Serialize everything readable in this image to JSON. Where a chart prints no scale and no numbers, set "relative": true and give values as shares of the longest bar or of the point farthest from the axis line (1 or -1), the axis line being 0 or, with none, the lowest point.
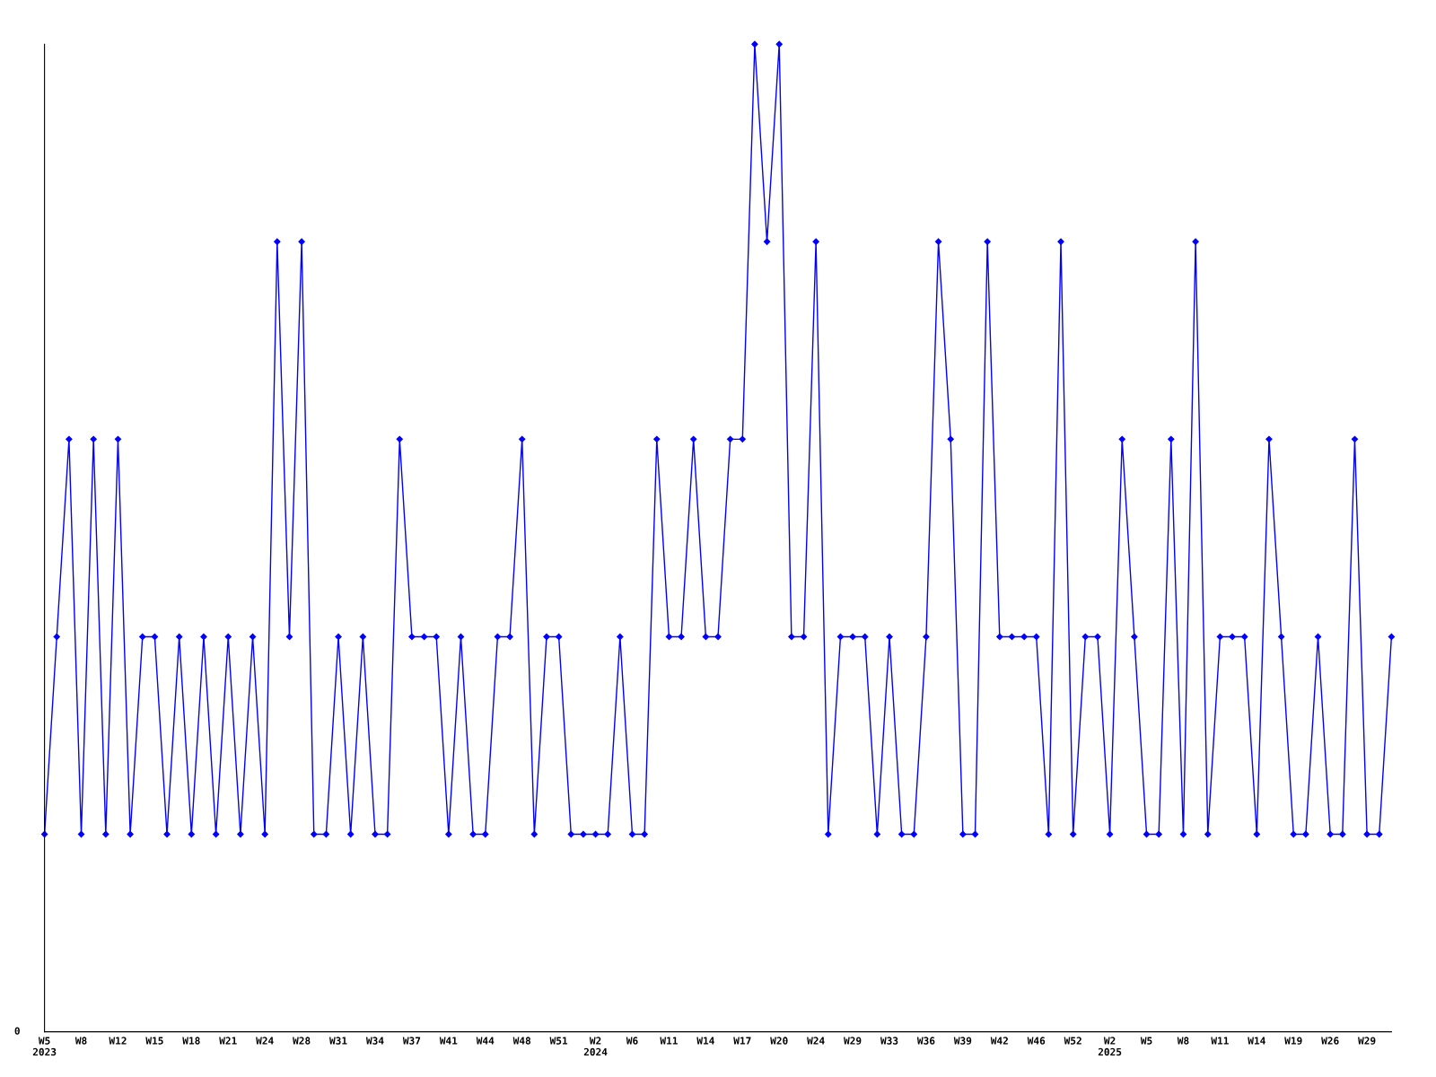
{
  "chart_data": {
    "type": "line",
    "relative": true,
    "color": "#0000ff",
    "marker": "diamond",
    "line_style": "solid",
    "grid": false,
    "legend": false,
    "annotations": [
      "0"
    ],
    "categories": [
      "W5\n2023",
      null,
      null,
      "W8",
      null,
      null,
      "W12",
      null,
      null,
      "W15",
      null,
      null,
      "W18",
      null,
      null,
      "W21",
      null,
      null,
      "W24",
      null,
      null,
      "W28",
      null,
      null,
      "W31",
      null,
      null,
      "W34",
      null,
      null,
      "W37",
      null,
      null,
      "W41",
      null,
      null,
      "W44",
      null,
      null,
      "W48",
      null,
      null,
      "W51",
      null,
      null,
      "W2\n2024",
      null,
      null,
      "W6",
      null,
      null,
      "W11",
      null,
      null,
      "W14",
      null,
      null,
      "W17",
      null,
      null,
      "W20",
      null,
      null,
      "W24",
      null,
      null,
      "W29",
      null,
      null,
      "W33",
      null,
      null,
      "W36",
      null,
      null,
      "W39",
      null,
      null,
      "W42",
      null,
      null,
      "W46",
      null,
      null,
      "W52",
      null,
      null,
      "W2\n2025",
      null,
      null,
      "W5",
      null,
      null,
      "W8",
      null,
      null,
      "W11",
      null,
      null,
      "W14",
      null,
      null,
      "W19",
      null,
      null,
      "W26",
      null,
      null,
      "W29",
      null,
      null
    ],
    "values": [
      0.2,
      0.4,
      0.6,
      0.2,
      0.6,
      0.2,
      0.6,
      0.2,
      0.4,
      0.4,
      0.2,
      0.4,
      0.2,
      0.4,
      0.2,
      0.4,
      0.2,
      0.4,
      0.2,
      0.8,
      0.4,
      0.8,
      0.2,
      0.2,
      0.4,
      0.2,
      0.4,
      0.2,
      0.2,
      0.6,
      0.4,
      0.4,
      0.4,
      0.2,
      0.4,
      0.2,
      0.2,
      0.4,
      0.4,
      0.6,
      0.2,
      0.4,
      0.4,
      0.2,
      0.2,
      0.2,
      0.2,
      0.4,
      0.2,
      0.2,
      0.6,
      0.4,
      0.4,
      0.6,
      0.4,
      0.4,
      0.6,
      0.6,
      1.0,
      0.8,
      1.0,
      0.4,
      0.4,
      0.8,
      0.2,
      0.4,
      0.4,
      0.4,
      0.2,
      0.4,
      0.2,
      0.2,
      0.4,
      0.8,
      0.6,
      0.2,
      0.2,
      0.8,
      0.4,
      0.4,
      0.4,
      0.4,
      0.2,
      0.8,
      0.2,
      0.4,
      0.4,
      0.2,
      0.6,
      0.4,
      0.2,
      0.2,
      0.6,
      0.2,
      0.8,
      0.2,
      0.4,
      0.4,
      0.4,
      0.2,
      0.6,
      0.4,
      0.2,
      0.2,
      0.4,
      0.2,
      0.2,
      0.6,
      0.2,
      0.2,
      0.4
    ]
  }
}
